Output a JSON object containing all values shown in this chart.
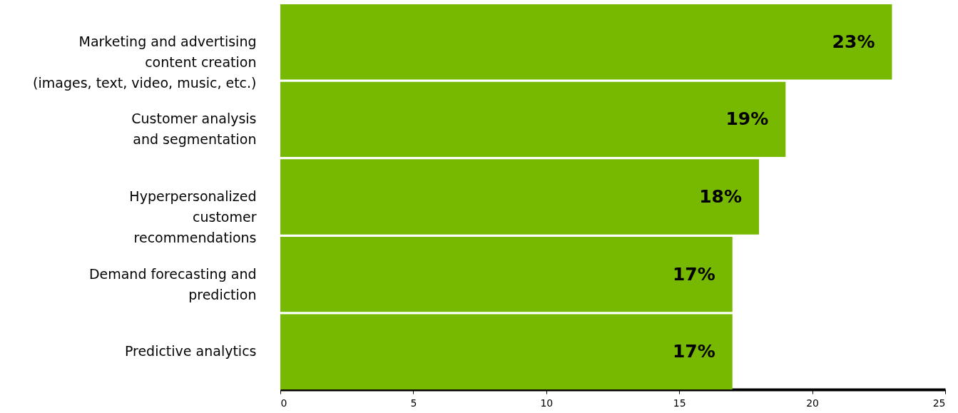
{
  "chart_data": {
    "type": "bar",
    "orientation": "horizontal",
    "categories": [
      "Marketing and advertising\ncontent creation\n(images, text, video, music, etc.)",
      "Customer analysis\nand segmentation",
      "Hyperpersonalized\ncustomer\nrecommendations",
      "Demand forecasting and\nprediction",
      "Predictive analytics"
    ],
    "values": [
      23,
      19,
      18,
      17,
      17
    ],
    "value_labels": [
      "23%",
      "19%",
      "18%",
      "17%",
      "17%"
    ],
    "color": "#76b900",
    "xlim": [
      0,
      25
    ],
    "xticks": [
      0,
      5,
      10,
      15,
      20,
      25
    ],
    "grid": false
  }
}
